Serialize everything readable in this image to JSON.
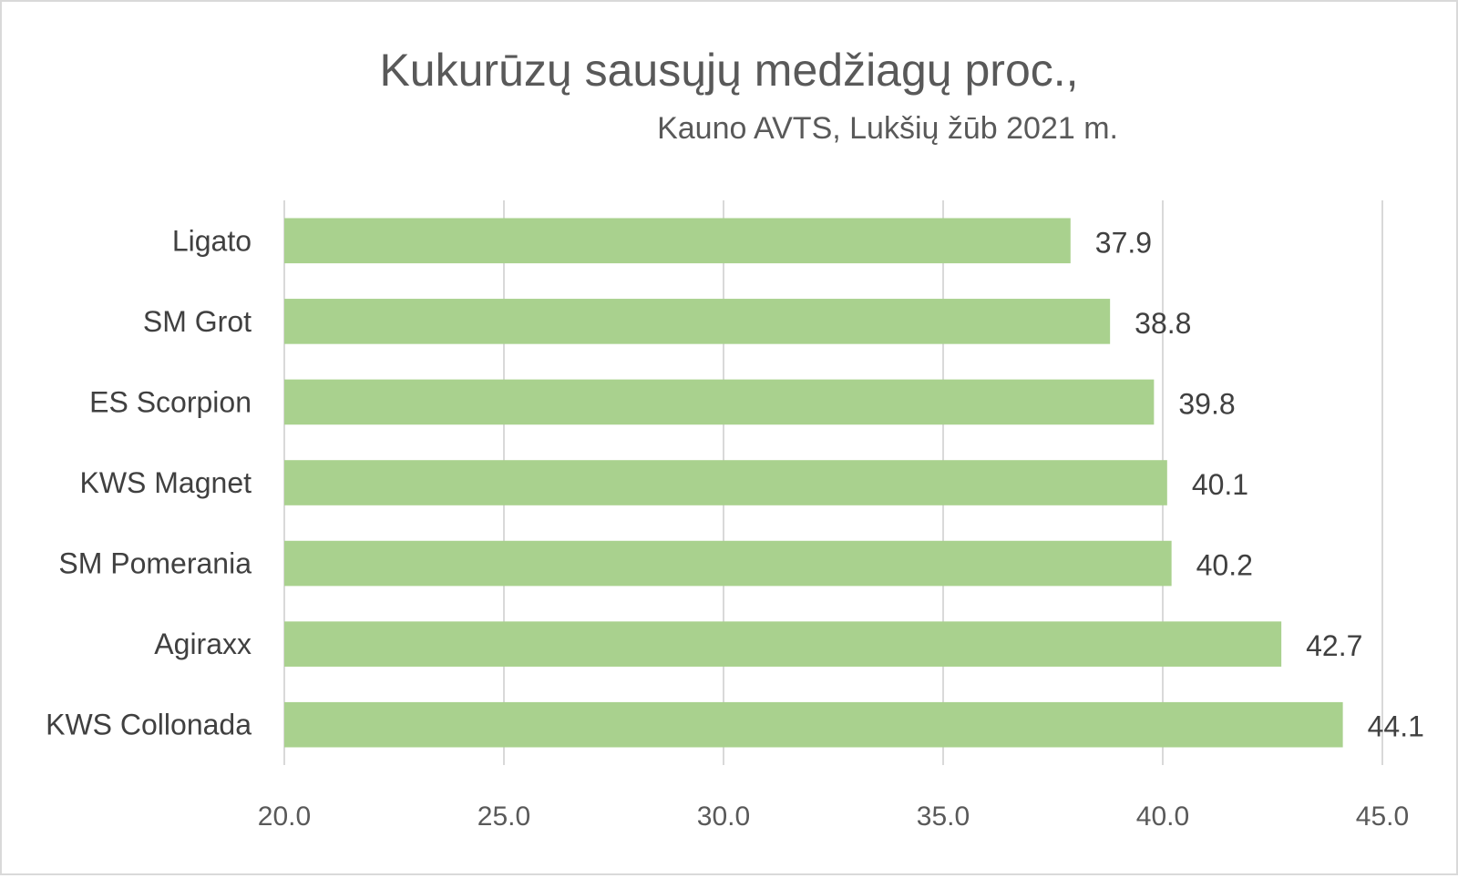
{
  "chart_data": {
    "type": "bar",
    "orientation": "horizontal",
    "title": "Kukurūzų sausųjų medžiagų proc.,",
    "subtitle": "Kauno AVTS, Lukšių žūb 2021 m.",
    "categories": [
      "Ligato",
      "SM Grot",
      "ES Scorpion",
      "KWS Magnet",
      "SM Pomerania",
      "Agiraxx",
      "KWS Collonada"
    ],
    "values": [
      37.9,
      38.8,
      39.8,
      40.1,
      40.2,
      42.7,
      44.1
    ],
    "data_labels": [
      "37.9",
      "38.8",
      "39.8",
      "40.1",
      "40.2",
      "42.7",
      "44.1"
    ],
    "xlim": [
      20,
      45
    ],
    "xticks": [
      20,
      25,
      30,
      35,
      40,
      45
    ],
    "xtick_labels": [
      "20.0",
      "25.0",
      "30.0",
      "35.0",
      "40.0",
      "45.0"
    ],
    "grid": "vertical",
    "legend": "none",
    "bar_color": "#a9d18e",
    "gridline_color": "#d9d9d9"
  }
}
